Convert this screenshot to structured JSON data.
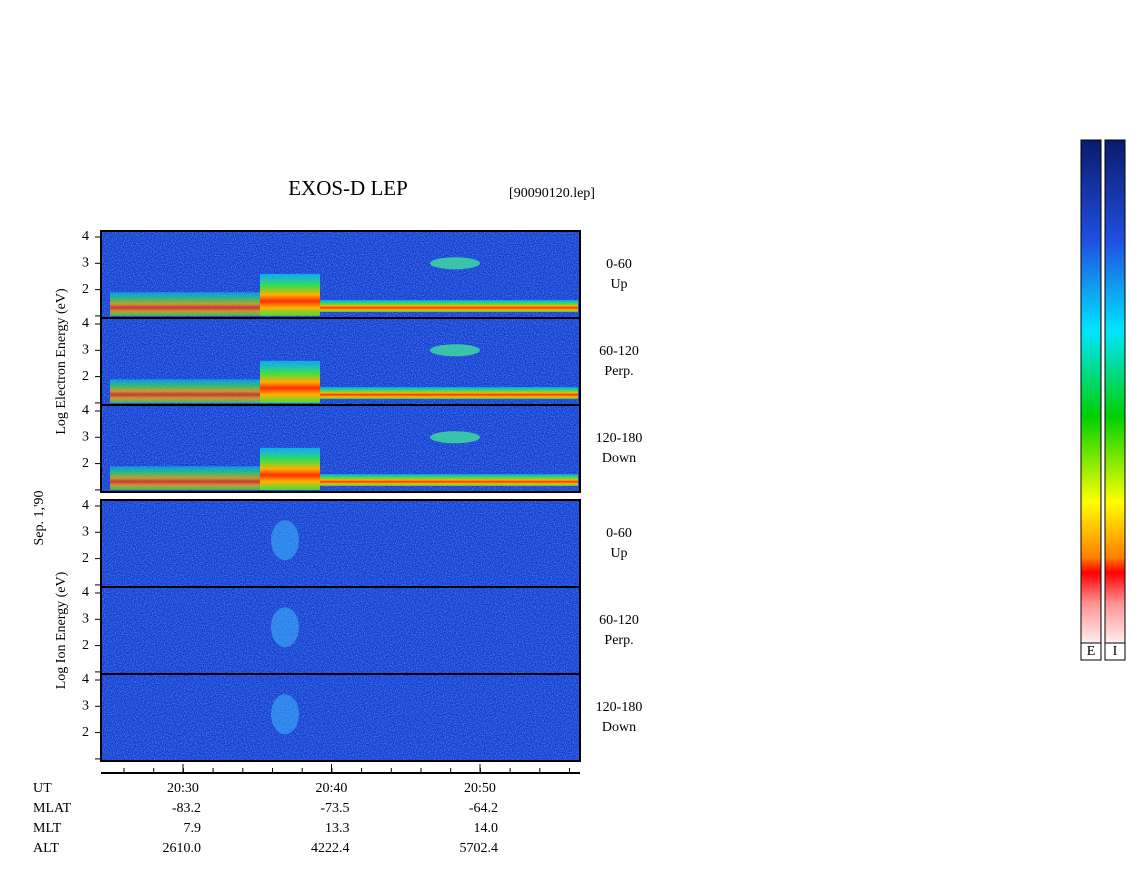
{
  "title": "EXOS-D LEP",
  "file": "[90090120.lep]",
  "date": "Sep. 1,'90",
  "groups": [
    {
      "label": "Log Electron Energy (eV)",
      "panels": [
        {
          "angle": "0-60",
          "direction": "Up"
        },
        {
          "angle": "60-120",
          "direction": "Perp."
        },
        {
          "angle": "120-180",
          "direction": "Down"
        }
      ]
    },
    {
      "label": "Log Ion Energy (eV)",
      "panels": [
        {
          "angle": "0-60",
          "direction": "Up"
        },
        {
          "angle": "60-120",
          "direction": "Perp."
        },
        {
          "angle": "120-180",
          "direction": "Down"
        }
      ]
    }
  ],
  "yticks": [
    {
      "value": 1,
      "label": null
    },
    2,
    3,
    4
  ],
  "time_axis": {
    "rows": [
      {
        "name": "UT",
        "values": [
          "20:30",
          "20:40",
          "20:50"
        ]
      },
      {
        "name": "MLAT",
        "values": [
          "-83.2",
          "-73.5",
          "-64.2"
        ]
      },
      {
        "name": "MLT",
        "values": [
          "7.9",
          "13.3",
          "14.0"
        ]
      },
      {
        "name": "ALT",
        "values": [
          "2610.0",
          "4222.4",
          "5702.4"
        ]
      }
    ]
  },
  "colorbars": [
    "E",
    "I"
  ]
}
